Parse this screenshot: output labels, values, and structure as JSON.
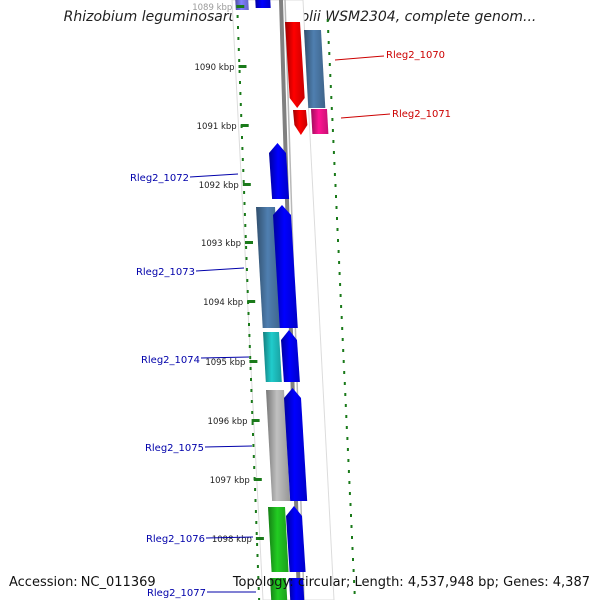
{
  "title": "Rhizobium leguminosarum bv. trifolii WSM2304, complete genom...",
  "footer": {
    "accession_label": "Accession:",
    "accession": "NC_011369",
    "topology_label": "Topology:",
    "topology": "circular",
    "length_label": "Length:",
    "length": "4,537,948 bp",
    "genes_label": "Genes:",
    "genes": "4,387"
  },
  "colors": {
    "forward_label": "#cc0000",
    "reverse_label": "#0000aa",
    "backbone": "#808080",
    "tick": "#1a7a1a",
    "red": "#ff0000",
    "magenta": "#ff1493",
    "steel": "#4f7fb0",
    "blue": "#0000ff",
    "cyan": "#20cccc",
    "silver": "#c0c0c0",
    "green": "#22cc22",
    "purple": "#8080ff"
  },
  "kbp_ticks": [
    "1089 kbp",
    "1090 kbp",
    "1091 kbp",
    "1092 kbp",
    "1093 kbp",
    "1094 kbp",
    "1095 kbp",
    "1096 kbp",
    "1097 kbp",
    "1098 kbp"
  ],
  "gene_labels": [
    {
      "id": "Rleg2_1070",
      "strand": "forward"
    },
    {
      "id": "Rleg2_1071",
      "strand": "forward"
    },
    {
      "id": "Rleg2_1072",
      "strand": "reverse"
    },
    {
      "id": "Rleg2_1073",
      "strand": "reverse"
    },
    {
      "id": "Rleg2_1074",
      "strand": "reverse"
    },
    {
      "id": "Rleg2_1075",
      "strand": "reverse"
    },
    {
      "id": "Rleg2_1076",
      "strand": "reverse"
    },
    {
      "id": "Rleg2_1077",
      "strand": "reverse"
    }
  ]
}
